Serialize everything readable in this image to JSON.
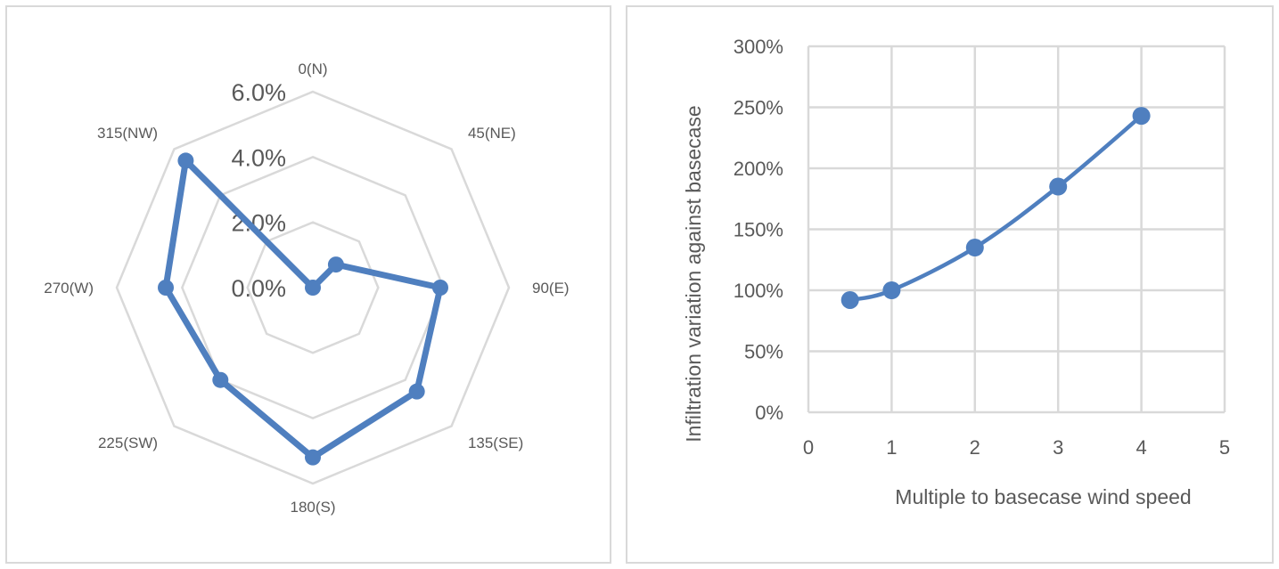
{
  "chart_data": [
    {
      "type": "radar",
      "categories": [
        "0(N)",
        "45(NE)",
        "90(E)",
        "135(SE)",
        "180(S)",
        "225(SW)",
        "270(W)",
        "315(NW)"
      ],
      "values": [
        0.0,
        1.0,
        3.9,
        4.5,
        5.2,
        4.0,
        4.5,
        5.5
      ],
      "r_ticks": [
        "0.0%",
        "2.0%",
        "4.0%",
        "6.0%"
      ],
      "r_tick_values": [
        0,
        2,
        4,
        6
      ],
      "rlim": [
        0,
        6
      ],
      "title": "",
      "grid": true,
      "color": "#4f7fbf"
    },
    {
      "type": "line",
      "x": [
        0.5,
        1,
        2,
        3,
        4
      ],
      "values": [
        92,
        100,
        135,
        185,
        243
      ],
      "xlim": [
        0,
        5
      ],
      "ylim": [
        0,
        300
      ],
      "x_ticks": [
        "0",
        "1",
        "2",
        "3",
        "4",
        "5"
      ],
      "x_tick_values": [
        0,
        1,
        2,
        3,
        4,
        5
      ],
      "y_ticks": [
        "0%",
        "50%",
        "100%",
        "150%",
        "200%",
        "250%",
        "300%"
      ],
      "y_tick_values": [
        0,
        50,
        100,
        150,
        200,
        250,
        300
      ],
      "xlabel": "Multiple to basecase wind speed",
      "ylabel": "Infiltration variation against basecase",
      "title": "",
      "grid": true,
      "color": "#4f7fbf"
    }
  ]
}
